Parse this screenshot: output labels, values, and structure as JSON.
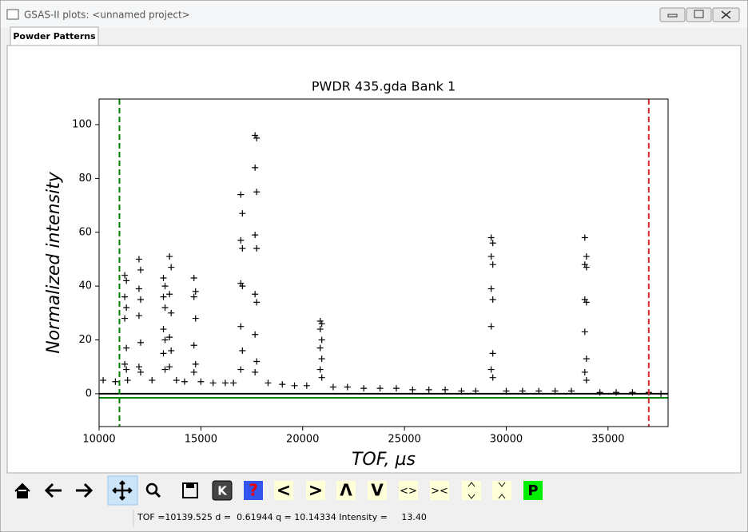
{
  "window": {
    "title": "GSAS-II plots: <unnamed project>"
  },
  "tab": {
    "label": "Powder Patterns"
  },
  "toolbar": {
    "buttons": [
      "K",
      "?",
      "<",
      ">",
      "Λ",
      "V",
      "<>",
      "><",
      "P"
    ]
  },
  "status": {
    "text": "TOF =10139.525 d =  0.61944 q = 10.14334 Intensity =     13.40"
  },
  "chart_data": {
    "type": "scatter",
    "title": "PWDR 435.gda Bank 1",
    "xlabel": "TOF, µs",
    "ylabel": "Normalized intensity",
    "color": "#000000",
    "xlim": [
      10000,
      37950
    ],
    "ylim": [
      -12.2,
      109.5
    ],
    "xticks": [
      10000,
      15000,
      20000,
      25000,
      30000,
      35000
    ],
    "yticks": [
      0,
      20,
      40,
      60,
      80,
      100
    ],
    "vlines": [
      {
        "value": 11000,
        "color": "#008000"
      },
      {
        "value": 37000,
        "color": "#d62728"
      }
    ],
    "hlines": [
      {
        "value": 0,
        "color": "#000000"
      },
      {
        "value": -1.5,
        "color": "#008000"
      }
    ],
    "x": [
      10200,
      10800,
      11400,
      12600,
      13800,
      14200,
      15000,
      15600,
      16200,
      16600,
      18300,
      19000,
      19600,
      20200,
      21500,
      22200,
      23000,
      23800,
      24600,
      25400,
      26200,
      27000,
      27800,
      28500,
      30000,
      30800,
      31600,
      32400,
      33200,
      34600,
      35400,
      36200,
      37000,
      37600,
      11260,
      11340,
      11260,
      11340,
      11260,
      11340,
      11260,
      11340,
      11960,
      12040,
      11960,
      12040,
      11960,
      12040,
      11960,
      12040,
      13160,
      13240,
      13160,
      13240,
      13160,
      13240,
      13160,
      13240,
      13460,
      13540,
      13460,
      13540,
      13460,
      13540,
      13460,
      14660,
      14740,
      14660,
      14740,
      14660,
      14740,
      14660,
      16960,
      17040,
      16960,
      17040,
      16960,
      17040,
      16960,
      17040,
      16960,
      17660,
      17740,
      17660,
      17740,
      17660,
      17740,
      17660,
      17740,
      17660,
      17740,
      17660,
      20860,
      20940,
      20860,
      20940,
      20860,
      20940,
      20860,
      20940,
      29260,
      29340,
      29260,
      29340,
      29260,
      29340,
      29260,
      29340,
      29260,
      29340,
      33860,
      33940,
      33860,
      33940,
      33860,
      33940,
      33860,
      33940,
      33860,
      33940
    ],
    "values": [
      5,
      4.5,
      5,
      5,
      5,
      4.5,
      4.5,
      4,
      4,
      4,
      4,
      3.5,
      3,
      3,
      2.5,
      2.5,
      2,
      2,
      2,
      1.5,
      1.5,
      1.5,
      1,
      1,
      1,
      1,
      1,
      1,
      1,
      0.5,
      0.5,
      0.5,
      0.5,
      0,
      44,
      42,
      36,
      32,
      28,
      17,
      11,
      9,
      50,
      46,
      39,
      35,
      29,
      19,
      10,
      8,
      43,
      40,
      36,
      32,
      24,
      20,
      15,
      9,
      51,
      47,
      37,
      30,
      21,
      16,
      10,
      43,
      38,
      36,
      28,
      18,
      11,
      8,
      74,
      67,
      57,
      54,
      41,
      40,
      25,
      16,
      9,
      96,
      95,
      84,
      75,
      59,
      54,
      37,
      34,
      22,
      12,
      8,
      27,
      26,
      24,
      20,
      17,
      13,
      9,
      6,
      58,
      56,
      51,
      48,
      39,
      35,
      25,
      15,
      9,
      6,
      58,
      51,
      48,
      47,
      35,
      34,
      23,
      13,
      8,
      5
    ]
  }
}
